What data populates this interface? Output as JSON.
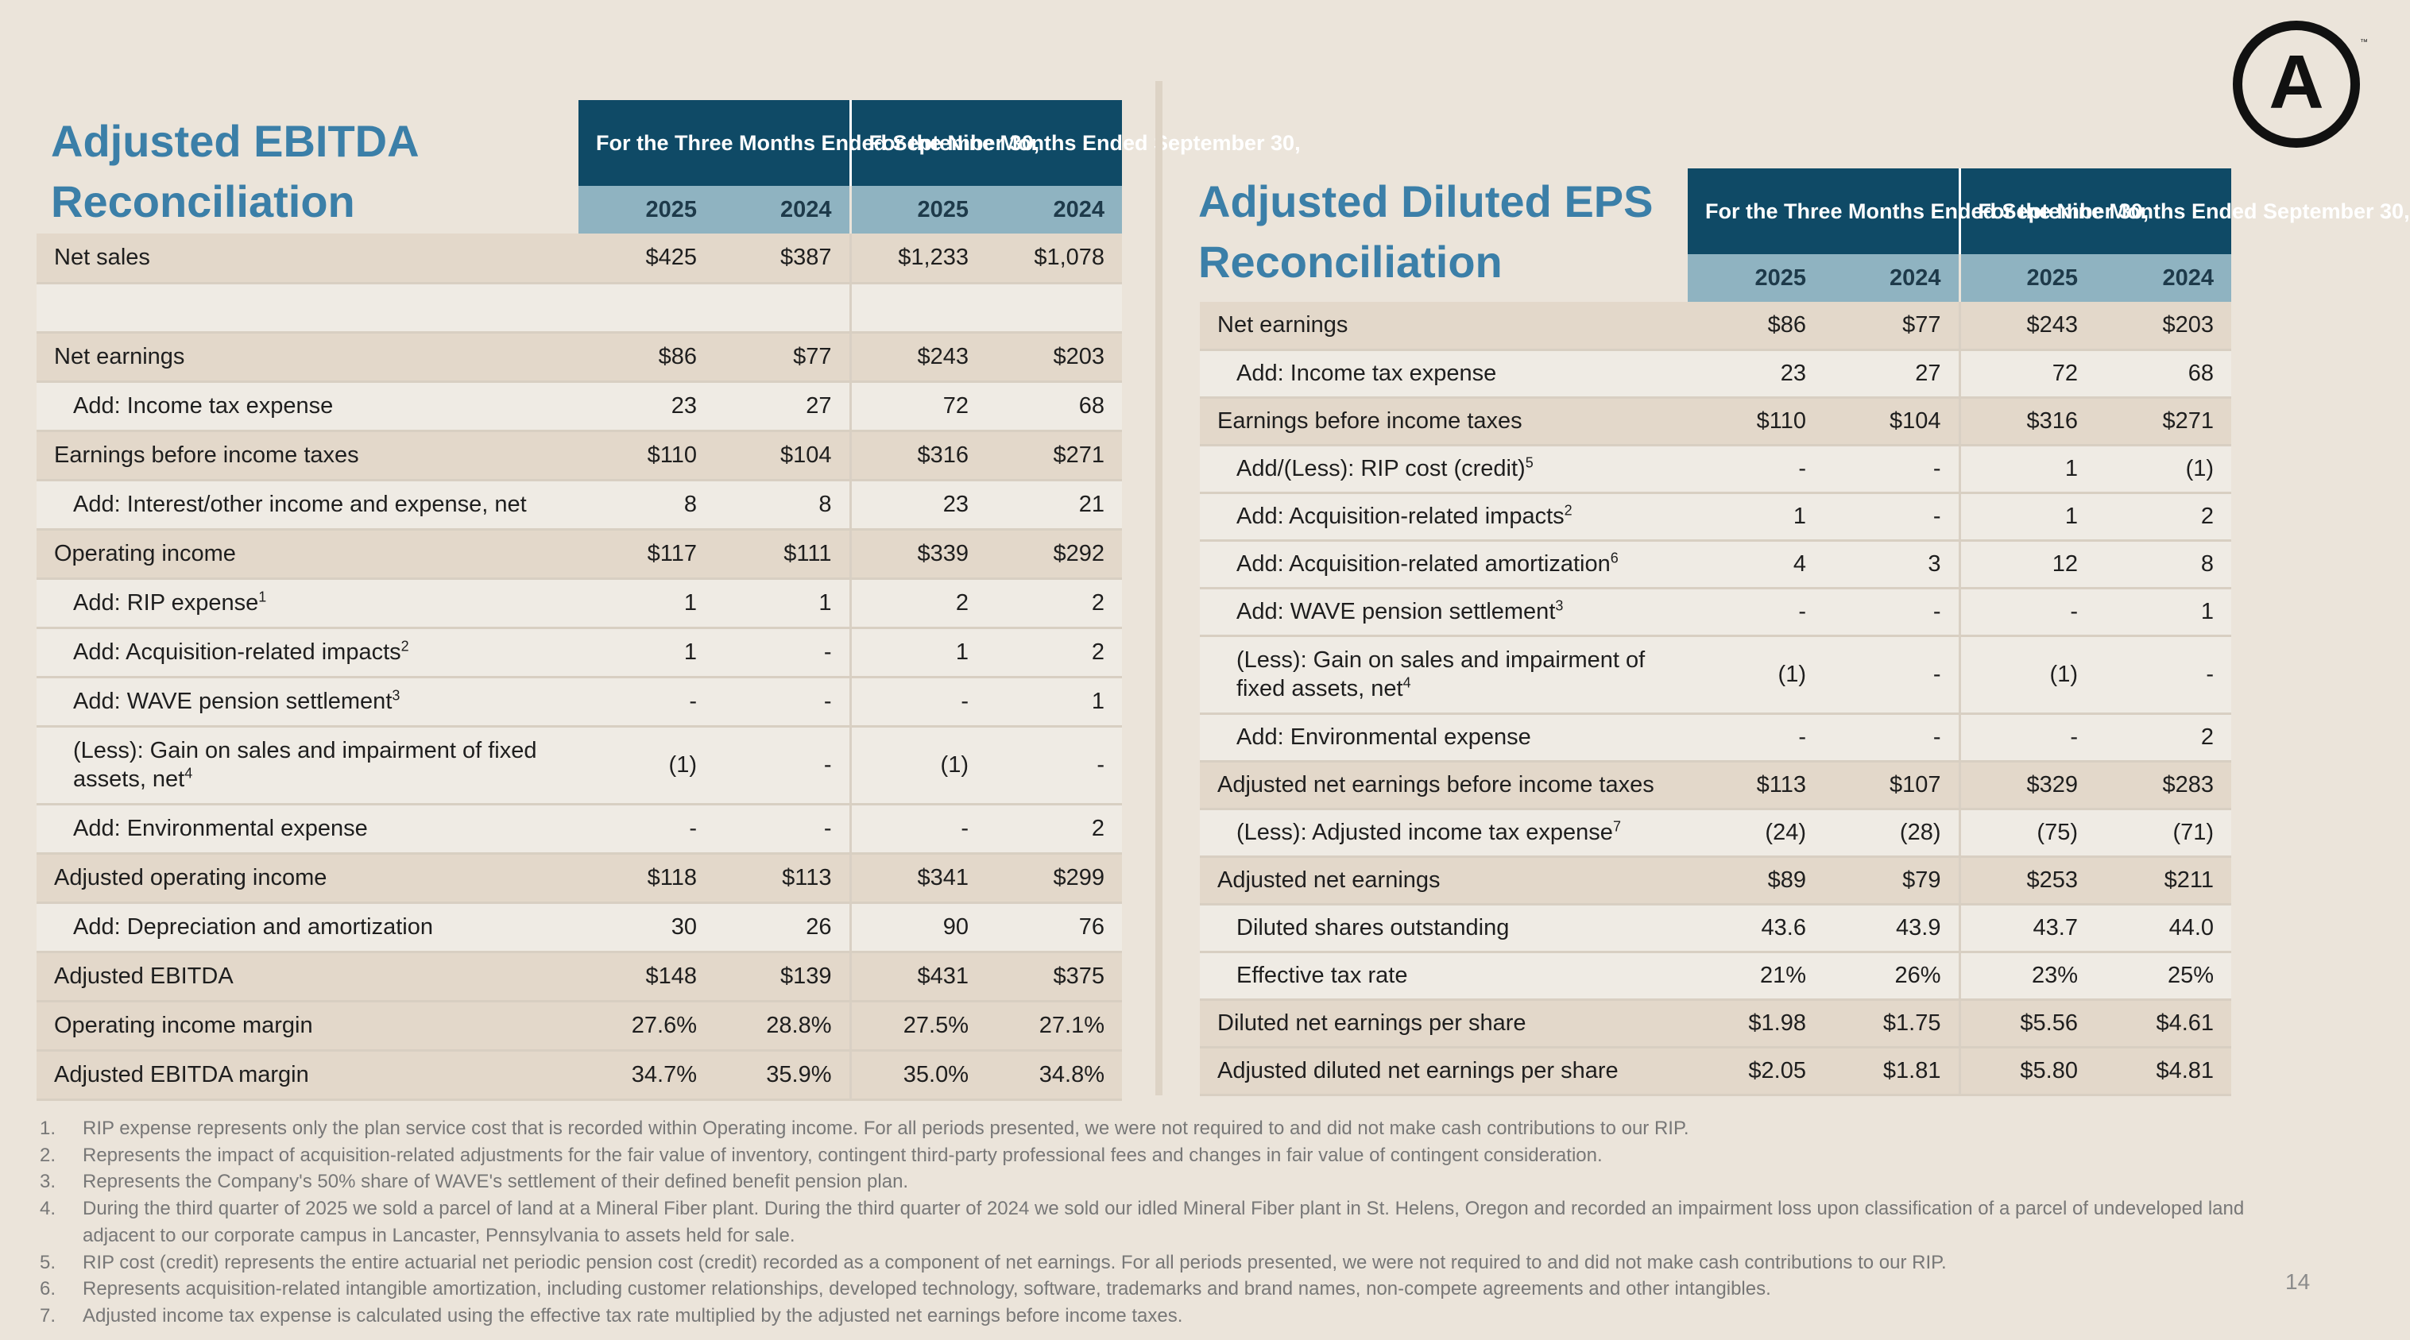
{
  "ebitda": {
    "title": "Adjusted EBITDA Reconciliation",
    "three_months_header": "For the Three Months Ended September 30,",
    "nine_months_header": "For the Nine Months Ended September 30,",
    "years": [
      "2025",
      "2024",
      "2025",
      "2024"
    ],
    "rows": [
      {
        "label": "Net sales",
        "sup": "",
        "values": [
          "$425",
          "$387",
          "$1,233",
          "$1,078"
        ]
      },
      {
        "label": "",
        "sup": "",
        "values": [
          "",
          "",
          "",
          ""
        ]
      },
      {
        "label": "Net earnings",
        "sup": "",
        "values": [
          "$86",
          "$77",
          "$243",
          "$203"
        ]
      },
      {
        "label": "Add: Income tax expense",
        "sup": "",
        "values": [
          "23",
          "27",
          "72",
          "68"
        ]
      },
      {
        "label": "Earnings before income taxes",
        "sup": "",
        "values": [
          "$110",
          "$104",
          "$316",
          "$271"
        ]
      },
      {
        "label": "Add: Interest/other income and expense, net",
        "sup": "",
        "values": [
          "8",
          "8",
          "23",
          "21"
        ]
      },
      {
        "label": "Operating income",
        "sup": "",
        "values": [
          "$117",
          "$111",
          "$339",
          "$292"
        ]
      },
      {
        "label": "Add: RIP expense",
        "sup": "1",
        "values": [
          "1",
          "1",
          "2",
          "2"
        ]
      },
      {
        "label": "Add: Acquisition-related impacts",
        "sup": "2",
        "values": [
          "1",
          "-",
          "1",
          "2"
        ]
      },
      {
        "label": "Add: WAVE pension settlement",
        "sup": "3",
        "values": [
          "-",
          "-",
          "-",
          "1"
        ]
      },
      {
        "label": "(Less): Gain on sales and impairment of fixed assets, net",
        "sup": "4",
        "values": [
          "(1)",
          "-",
          "(1)",
          "-"
        ]
      },
      {
        "label": "Add: Environmental expense",
        "sup": "",
        "values": [
          "-",
          "-",
          "-",
          "2"
        ]
      },
      {
        "label": "Adjusted operating income",
        "sup": "",
        "values": [
          "$118",
          "$113",
          "$341",
          "$299"
        ]
      },
      {
        "label": "Add: Depreciation and amortization",
        "sup": "",
        "values": [
          "30",
          "26",
          "90",
          "76"
        ]
      },
      {
        "label": "Adjusted EBITDA",
        "sup": "",
        "values": [
          "$148",
          "$139",
          "$431",
          "$375"
        ]
      },
      {
        "label": "Operating income margin",
        "sup": "",
        "values": [
          "27.6%",
          "28.8%",
          "27.5%",
          "27.1%"
        ]
      },
      {
        "label": "Adjusted EBITDA margin",
        "sup": "",
        "values": [
          "34.7%",
          "35.9%",
          "35.0%",
          "34.8%"
        ]
      }
    ]
  },
  "eps": {
    "title": "Adjusted Diluted EPS Reconciliation",
    "three_months_header": "For the Three Months Ended September 30,",
    "nine_months_header": "For the Nine Months Ended September 30,",
    "years": [
      "2025",
      "2024",
      "2025",
      "2024"
    ],
    "rows": [
      {
        "label": "Net earnings",
        "sup": "",
        "values": [
          "$86",
          "$77",
          "$243",
          "$203"
        ]
      },
      {
        "label": "Add: Income tax expense",
        "sup": "",
        "values": [
          "23",
          "27",
          "72",
          "68"
        ]
      },
      {
        "label": "Earnings before income taxes",
        "sup": "",
        "values": [
          "$110",
          "$104",
          "$316",
          "$271"
        ]
      },
      {
        "label": "Add/(Less): RIP cost (credit)",
        "sup": "5",
        "values": [
          "-",
          "-",
          "1",
          "(1)"
        ]
      },
      {
        "label": "Add: Acquisition-related impacts",
        "sup": "2",
        "values": [
          "1",
          "-",
          "1",
          "2"
        ]
      },
      {
        "label": "Add: Acquisition-related amortization",
        "sup": "6",
        "values": [
          "4",
          "3",
          "12",
          "8"
        ]
      },
      {
        "label": "Add: WAVE pension settlement",
        "sup": "3",
        "values": [
          "-",
          "-",
          "-",
          "1"
        ]
      },
      {
        "label": "(Less): Gain on sales and impairment of fixed assets, net",
        "sup": "4",
        "values": [
          "(1)",
          "-",
          "(1)",
          "-"
        ]
      },
      {
        "label": "Add: Environmental expense",
        "sup": "",
        "values": [
          "-",
          "-",
          "-",
          "2"
        ]
      },
      {
        "label": "Adjusted net earnings before income taxes",
        "sup": "",
        "values": [
          "$113",
          "$107",
          "$329",
          "$283"
        ]
      },
      {
        "label": "(Less): Adjusted income tax expense",
        "sup": "7",
        "values": [
          "(24)",
          "(28)",
          "(75)",
          "(71)"
        ]
      },
      {
        "label": "Adjusted net earnings",
        "sup": "",
        "values": [
          "$89",
          "$79",
          "$253",
          "$211"
        ]
      },
      {
        "label": "Diluted shares outstanding",
        "sup": "",
        "values": [
          "43.6",
          "43.9",
          "43.7",
          "44.0"
        ]
      },
      {
        "label": "Effective tax rate",
        "sup": "",
        "values": [
          "21%",
          "26%",
          "23%",
          "25%"
        ]
      },
      {
        "label": "Diluted net earnings per share",
        "sup": "",
        "values": [
          "$1.98",
          "$1.75",
          "$5.56",
          "$4.61"
        ]
      },
      {
        "label": "Adjusted diluted net earnings per share",
        "sup": "",
        "values": [
          "$2.05",
          "$1.81",
          "$5.80",
          "$4.81"
        ]
      }
    ]
  },
  "footnotes": [
    {
      "num": "1.",
      "text": "RIP expense represents only the plan service cost that is recorded within Operating income. For all periods presented, we were not required to and did not make cash contributions to our RIP."
    },
    {
      "num": "2.",
      "text": "Represents the impact of acquisition-related adjustments for the fair value of inventory, contingent third-party professional fees and changes in fair value of contingent consideration."
    },
    {
      "num": "3.",
      "text": "Represents the Company's 50% share of WAVE's settlement of their defined benefit pension plan."
    },
    {
      "num": "4.",
      "text": "During the third quarter of 2025 we sold a parcel of land at a Mineral Fiber plant. During the third quarter of 2024 we sold our idled Mineral Fiber plant in St. Helens, Oregon and recorded an impairment loss upon classification of a parcel of undeveloped land adjacent to our corporate campus in Lancaster, Pennsylvania to assets held for sale."
    },
    {
      "num": "5.",
      "text": "RIP cost (credit) represents the entire actuarial net periodic pension cost (credit) recorded as a component of net earnings. For all periods presented, we were not required to and did not make cash contributions to our RIP."
    },
    {
      "num": "6.",
      "text": "Represents acquisition-related intangible amortization, including customer relationships, developed technology, software, trademarks and brand names, non-compete agreements and other intangibles."
    },
    {
      "num": "7.",
      "text": "Adjusted income tax expense is calculated using the effective tax rate multiplied by the adjusted net earnings before income taxes."
    }
  ],
  "page_number": "14",
  "logo": {
    "icon": "circle-a-logo-icon",
    "letter": "A",
    "trademark": "™"
  },
  "colors": {
    "title": "#3b7fa8",
    "header_dark": "#0f4a66",
    "header_light": "#8fb3c1",
    "row_shade": "#e3d8ca",
    "row_plain": "#efebe4",
    "background": "#ebe4da"
  }
}
